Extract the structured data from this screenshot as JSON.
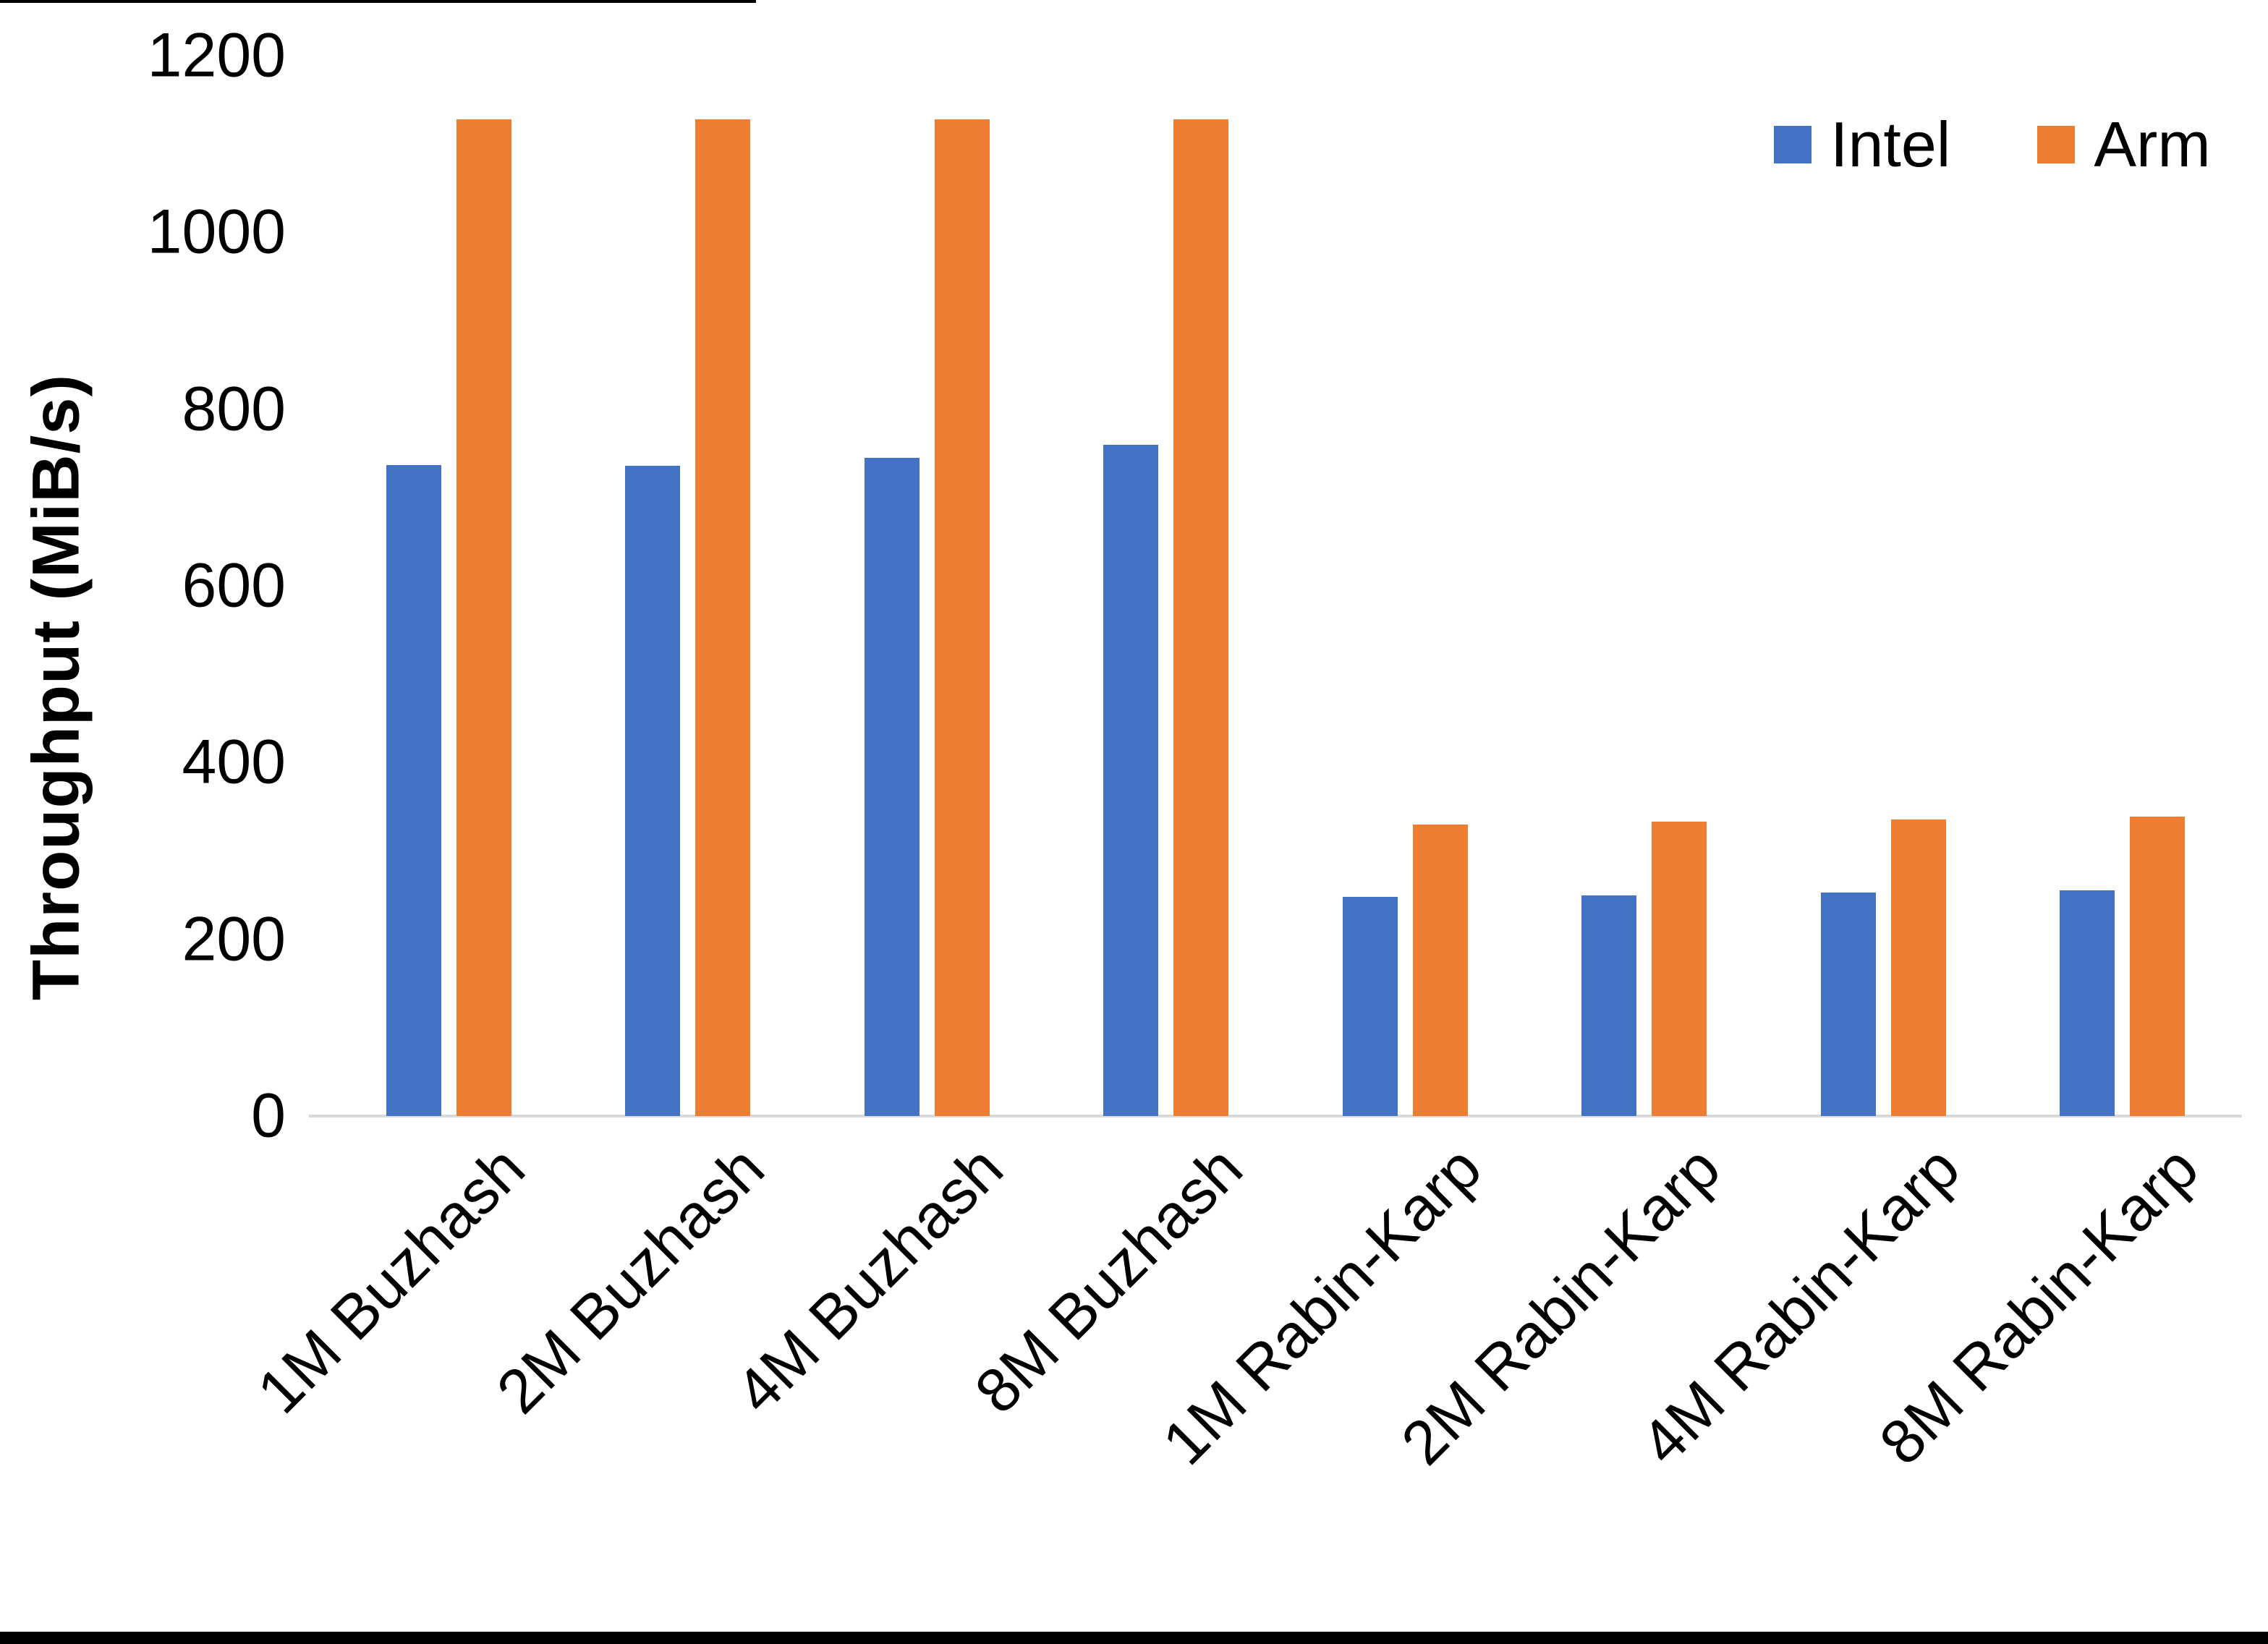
{
  "chart_data": {
    "type": "bar",
    "title": "",
    "xlabel": "",
    "ylabel": "Throughput (MiB/s)",
    "ylim": [
      0,
      1200
    ],
    "yticks": [
      0,
      200,
      400,
      600,
      800,
      1000,
      1200
    ],
    "grid": false,
    "legend_position": "top-right",
    "categories": [
      "1M Buzhash",
      "2M Buzhash",
      "4M Buzhash",
      "8M Buzhash",
      "1M Rabin-Karp",
      "2M Rabin-Karp",
      "4M Rabin-Karp",
      "8M Rabin-Karp"
    ],
    "series": [
      {
        "name": "Intel",
        "color": "#4472C4",
        "values": [
          737,
          736,
          745,
          760,
          248,
          250,
          253,
          255
        ]
      },
      {
        "name": "Arm",
        "color": "#ED7D31",
        "values": [
          1128,
          1128,
          1128,
          1128,
          330,
          333,
          336,
          339
        ]
      }
    ]
  },
  "legend": {
    "items": [
      {
        "label": "Intel",
        "color": "#4472C4"
      },
      {
        "label": "Arm",
        "color": "#ED7D31"
      }
    ]
  },
  "colors": {
    "background": "#FFFFFF",
    "axis_line": "#D9D9D9",
    "text": "#000000",
    "screenshot_border": "#000000"
  }
}
